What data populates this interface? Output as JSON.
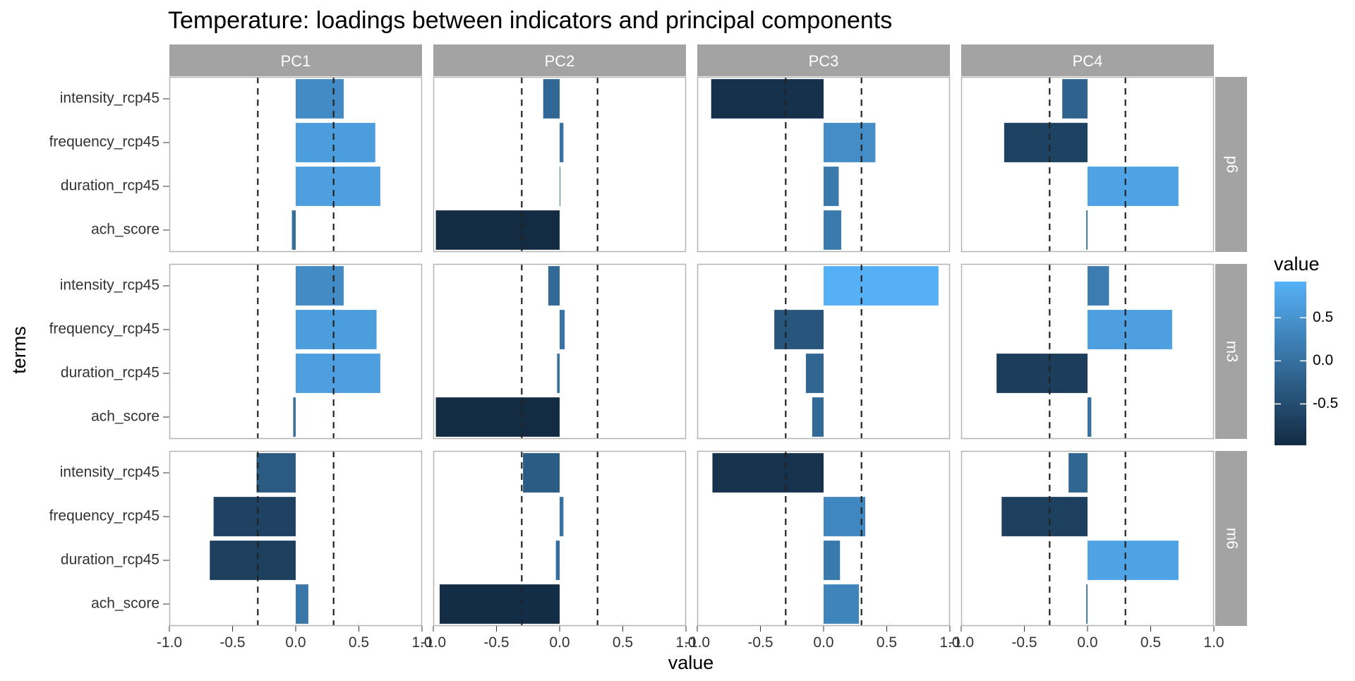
{
  "chart_data": {
    "type": "bar",
    "orientation": "horizontal",
    "title": "Temperature: loadings between indicators and principal components",
    "xlabel": "value",
    "ylabel": "terms",
    "xlim": [
      -1.0,
      1.0
    ],
    "x_ticks": [
      "-1.0",
      "-0.5",
      "0.0",
      "0.5",
      "1.0"
    ],
    "reference_lines": [
      -0.3,
      0.3
    ],
    "grid": false,
    "columns": [
      "PC1",
      "PC2",
      "PC3",
      "PC4"
    ],
    "rows": [
      "p6",
      "m3",
      "m6"
    ],
    "terms": [
      "intensity_rcp45",
      "frequency_rcp45",
      "duration_rcp45",
      "ach_score"
    ],
    "legend": {
      "title": "value",
      "position": "right",
      "ticks": [
        "0.5",
        "0.0",
        "-0.5"
      ],
      "range": [
        -0.98,
        0.92
      ],
      "color_low": "#132B43",
      "color_high": "#56B1F7"
    },
    "panels": [
      {
        "row": "p6",
        "column": "PC1",
        "values": [
          0.38,
          0.63,
          0.67,
          -0.03
        ]
      },
      {
        "row": "p6",
        "column": "PC2",
        "values": [
          -0.13,
          0.03,
          0.0,
          -0.98
        ]
      },
      {
        "row": "p6",
        "column": "PC3",
        "values": [
          -0.89,
          0.41,
          0.12,
          0.14
        ]
      },
      {
        "row": "p6",
        "column": "PC4",
        "values": [
          -0.2,
          -0.66,
          0.72,
          -0.01
        ]
      },
      {
        "row": "m3",
        "column": "PC1",
        "values": [
          0.38,
          0.64,
          0.67,
          -0.02
        ]
      },
      {
        "row": "m3",
        "column": "PC2",
        "values": [
          -0.09,
          0.04,
          -0.02,
          -0.98
        ]
      },
      {
        "row": "m3",
        "column": "PC3",
        "values": [
          0.91,
          -0.39,
          -0.14,
          -0.09
        ]
      },
      {
        "row": "m3",
        "column": "PC4",
        "values": [
          0.17,
          0.67,
          -0.72,
          0.03
        ]
      },
      {
        "row": "m6",
        "column": "PC1",
        "values": [
          -0.31,
          -0.65,
          -0.68,
          0.1
        ]
      },
      {
        "row": "m6",
        "column": "PC2",
        "values": [
          -0.29,
          0.03,
          -0.03,
          -0.95
        ]
      },
      {
        "row": "m6",
        "column": "PC3",
        "values": [
          -0.88,
          0.33,
          0.13,
          0.28
        ]
      },
      {
        "row": "m6",
        "column": "PC4",
        "values": [
          -0.15,
          -0.68,
          0.72,
          -0.01
        ]
      }
    ]
  }
}
